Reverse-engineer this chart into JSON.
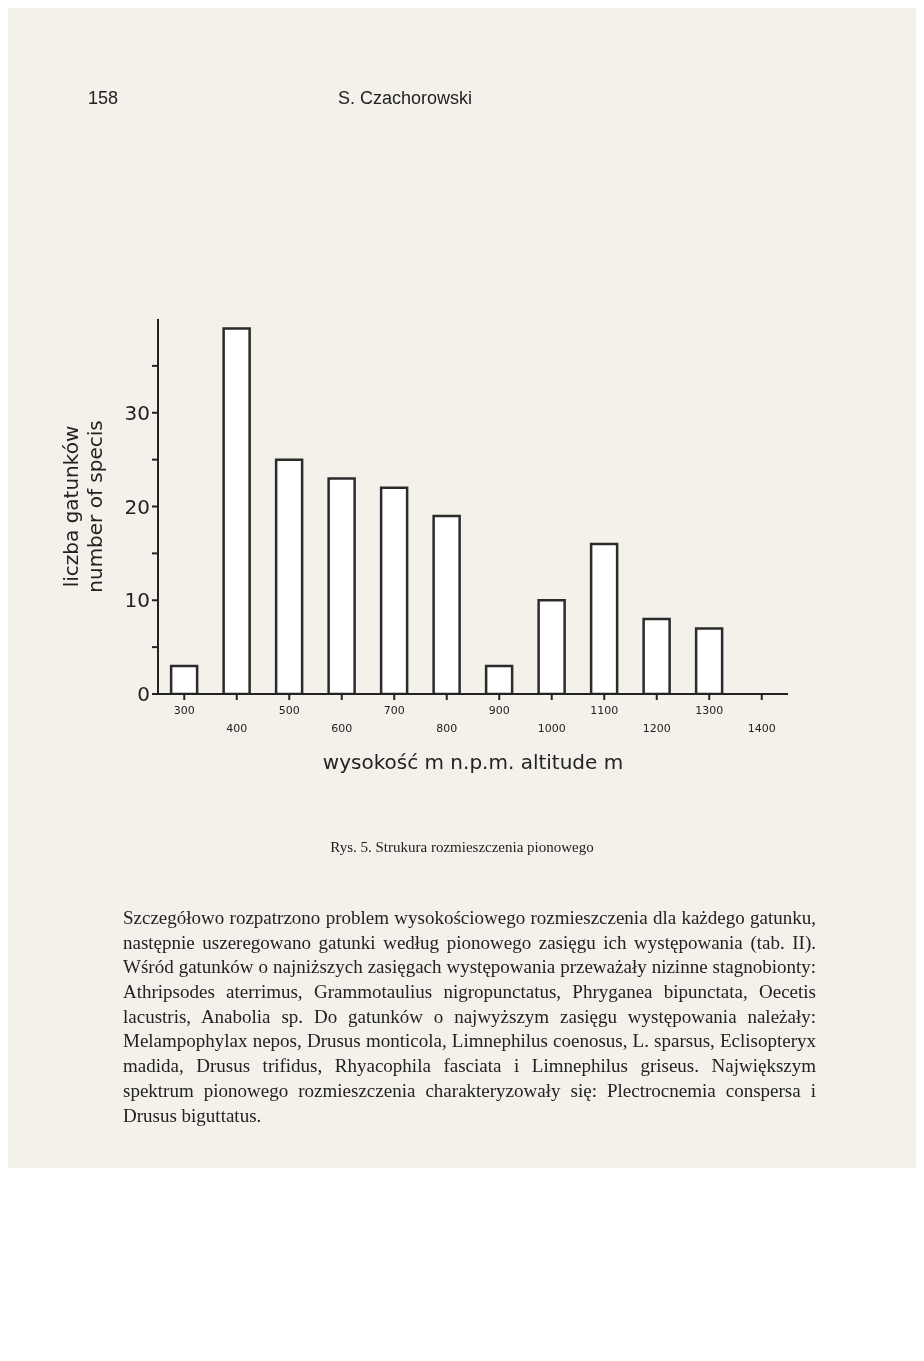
{
  "chart_data": {
    "type": "bar",
    "categories": [
      "300",
      "400",
      "500",
      "600",
      "700",
      "800",
      "900",
      "1000",
      "1100",
      "1200",
      "1300",
      "1400"
    ],
    "values": [
      3,
      39,
      25,
      23,
      22,
      19,
      3,
      10,
      16,
      8,
      7,
      null
    ],
    "color": "#2b2b2b",
    "xlabel": "wysokość  m n.p.m.        altitude  m",
    "ylabel": "liczba gatunków\nnumber of specis",
    "ylim": [
      0,
      40
    ],
    "yticks": [
      0,
      {
        "value": 5,
        "label": null
      },
      10,
      {
        "value": 15,
        "label": null
      },
      20,
      {
        "value": 25,
        "label": null
      },
      30,
      {
        "value": 35,
        "label": null
      }
    ],
    "grid": false,
    "legend": false,
    "annotations": [
      "158",
      "S. Czachorowski",
      "Rys. 5. Strukura rozmieszczenia pionowego",
      "Szczegółowo rozpatrzono problem wysokościowego rozmieszczenia dla każdego gatunku, następnie uszeregowano gatunki według pionowego zasięgu ich występowania (tab. II). Wśród gatunków o najniższych zasięgach występowania przeważały nizinne stagnobionty: Athripsodes aterrimus, Grammotaulius nigropunctatus, Phryganea bipunctata, Oecetis lacustris, Anabolia sp. Do gatunków o najwyższym zasięgu występowania należały: Melampophylax nepos, Drusus monticola, Limnephilus coenosus, L. sparsus, Eclisopteryx madida, Drusus trifidus, Rhyacophila fasciata i Limnephilus griseus. Największym spektrum pionowego rozmieszczenia charakteryzowały się: Plectrocnemia conspersa i Drusus biguttatus."
    ]
  }
}
